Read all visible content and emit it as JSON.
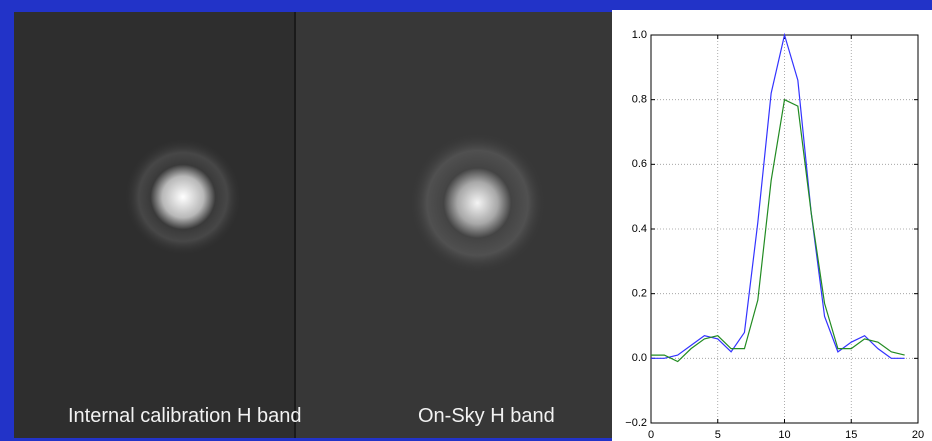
{
  "panels": [
    {
      "label": "Internal calibration H band"
    },
    {
      "label": "On-Sky H band"
    }
  ],
  "chart_data": {
    "type": "line",
    "x": [
      0,
      1,
      2,
      3,
      4,
      5,
      6,
      7,
      8,
      9,
      10,
      11,
      12,
      13,
      14,
      15,
      16,
      17,
      18,
      19
    ],
    "series": [
      {
        "color": "#3333ff",
        "values": [
          0.0,
          0.0,
          0.01,
          0.04,
          0.07,
          0.06,
          0.02,
          0.08,
          0.42,
          0.82,
          1.0,
          0.86,
          0.45,
          0.13,
          0.02,
          0.05,
          0.07,
          0.03,
          0.0,
          0.0
        ]
      },
      {
        "color": "#228b22",
        "values": [
          0.01,
          0.01,
          -0.01,
          0.03,
          0.06,
          0.07,
          0.03,
          0.03,
          0.18,
          0.55,
          0.8,
          0.78,
          0.45,
          0.17,
          0.03,
          0.03,
          0.06,
          0.05,
          0.02,
          0.01
        ]
      }
    ],
    "xlim": [
      0,
      20
    ],
    "xticks": [
      0,
      5,
      10,
      15,
      20
    ],
    "ylim": [
      -0.2,
      1.0
    ],
    "yticks": [
      {
        "value": -0.2,
        "label": "−0.2"
      },
      {
        "value": 0,
        "label": "0.0"
      },
      0.2,
      0.4,
      0.6,
      0.8,
      {
        "value": 1,
        "label": "1.0"
      }
    ],
    "grid": true
  }
}
